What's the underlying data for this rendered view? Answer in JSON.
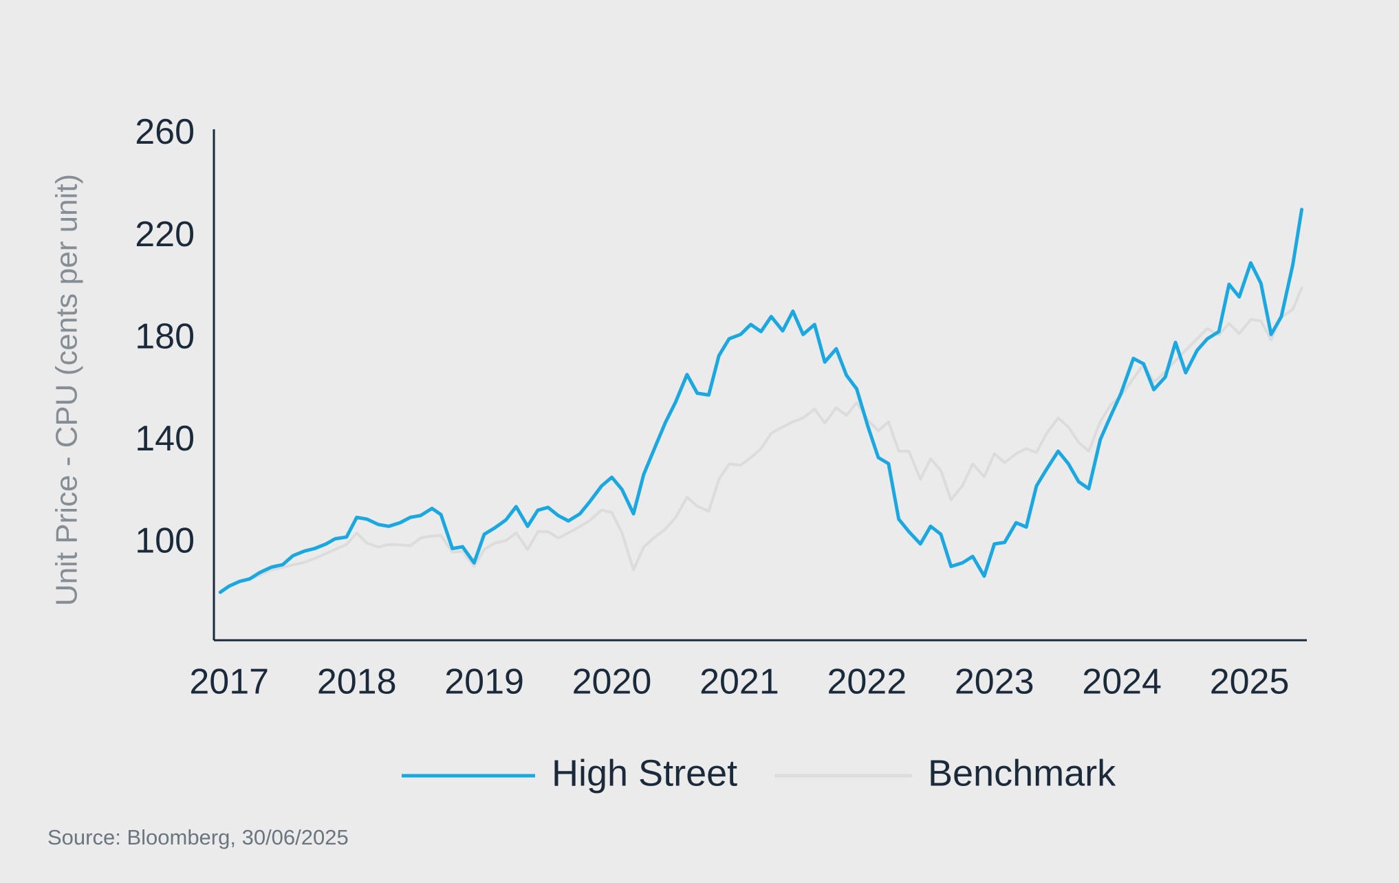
{
  "chart_data": {
    "type": "line",
    "y_label": "Unit Price - CPU (cents per unit)",
    "source": "Source: Bloomberg, 30/06/2025",
    "legend": "bottom",
    "grid": false,
    "xlim": [
      2016.88,
      2025.45
    ],
    "xticks": [
      2017,
      2018,
      2019,
      2020,
      2021,
      2022,
      2023,
      2024,
      2025
    ],
    "ylim": [
      62,
      262
    ],
    "yticks": [
      100,
      140,
      180,
      220,
      260
    ],
    "x": [
      2016.93,
      2017.0,
      2017.08,
      2017.16,
      2017.24,
      2017.33,
      2017.42,
      2017.5,
      2017.59,
      2017.67,
      2017.76,
      2017.83,
      2017.92,
      2018.0,
      2018.08,
      2018.17,
      2018.25,
      2018.34,
      2018.42,
      2018.5,
      2018.59,
      2018.66,
      2018.75,
      2018.83,
      2018.92,
      2019.0,
      2019.08,
      2019.17,
      2019.25,
      2019.34,
      2019.42,
      2019.5,
      2019.58,
      2019.66,
      2019.75,
      2019.83,
      2019.92,
      2020.0,
      2020.08,
      2020.17,
      2020.25,
      2020.34,
      2020.42,
      2020.5,
      2020.59,
      2020.67,
      2020.76,
      2020.84,
      2020.92,
      2021.01,
      2021.09,
      2021.17,
      2021.25,
      2021.34,
      2021.42,
      2021.5,
      2021.59,
      2021.67,
      2021.76,
      2021.84,
      2021.92,
      2022.01,
      2022.09,
      2022.17,
      2022.25,
      2022.33,
      2022.42,
      2022.5,
      2022.58,
      2022.66,
      2022.75,
      2022.83,
      2022.92,
      2023.0,
      2023.08,
      2023.17,
      2023.25,
      2023.33,
      2023.41,
      2023.5,
      2023.58,
      2023.66,
      2023.74,
      2023.83,
      2023.91,
      2023.99,
      2024.09,
      2024.17,
      2024.25,
      2024.34,
      2024.42,
      2024.5,
      2024.59,
      2024.67,
      2024.76,
      2024.84,
      2024.92,
      2025.01,
      2025.09,
      2025.17,
      2025.25,
      2025.34,
      2025.41
    ],
    "series": [
      {
        "name": "High Street",
        "color": "#1ba8e0",
        "values": [
          80.8,
          83.2,
          85,
          86,
          88.5,
          90.6,
          91.6,
          95.1,
          96.9,
          97.9,
          99.7,
          101.7,
          102.4,
          110.1,
          109.4,
          107.3,
          106.6,
          108,
          110.1,
          110.8,
          113.6,
          111.2,
          97.9,
          98.6,
          92.3,
          103.5,
          105.9,
          109.1,
          114.3,
          106.6,
          112.9,
          114,
          110.8,
          108.7,
          111.5,
          116.4,
          122.4,
          125.8,
          121,
          111.5,
          126.9,
          137.7,
          147.2,
          155.2,
          166,
          158.7,
          158,
          173.4,
          180,
          181.7,
          185.6,
          182.8,
          188.7,
          183.1,
          190.8,
          181.7,
          185.6,
          170.9,
          176.1,
          165.7,
          160.4,
          145.4,
          133.5,
          131.1,
          109.4,
          104.5,
          99.7,
          106.6,
          103.5,
          90.9,
          92.3,
          94.8,
          87.1,
          99.7,
          100.3,
          108,
          106.3,
          122.4,
          129,
          136,
          131.1,
          124.1,
          121.3,
          140.5,
          149.6,
          158.3,
          172.3,
          170.2,
          160.1,
          165,
          178.6,
          166.7,
          175.5,
          180,
          182.8,
          201.3,
          196.4,
          209.7,
          201.7,
          181.7,
          188.7,
          209,
          230.6
        ]
      },
      {
        "name": "Benchmark",
        "color": "#dcdcdc",
        "values": [
          80.8,
          83,
          85,
          86,
          87.5,
          89.5,
          90.5,
          91.5,
          92.5,
          94,
          96,
          97.5,
          99.5,
          104,
          100,
          98.5,
          99.5,
          99.3,
          99,
          102,
          102.8,
          103,
          96.5,
          96.8,
          91,
          97.5,
          100,
          101,
          104,
          97.5,
          104.5,
          104.5,
          102,
          104,
          106.5,
          109,
          113,
          112,
          104,
          89.5,
          98.5,
          102.5,
          105.5,
          110,
          118,
          114.5,
          112.5,
          125,
          131,
          130.5,
          133.5,
          137,
          143,
          145.5,
          147.5,
          149,
          152.5,
          147,
          153,
          150,
          155,
          148,
          144,
          147.5,
          136,
          136,
          125,
          133,
          128.5,
          117,
          122.5,
          131,
          126,
          135,
          131.5,
          135,
          137,
          135.5,
          143,
          149,
          145.5,
          139.5,
          136,
          147.5,
          154,
          157.5,
          164.5,
          170,
          163,
          167,
          171.5,
          175.5,
          180,
          184,
          181.5,
          186,
          182,
          187.5,
          187,
          179.5,
          188.5,
          191.5,
          200
        ]
      }
    ]
  }
}
